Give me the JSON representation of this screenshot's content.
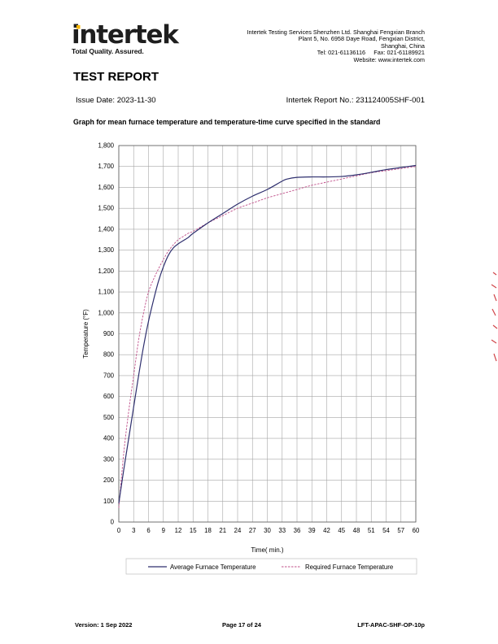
{
  "header": {
    "logo_text": "intertek",
    "tagline": "Total Quality. Assured.",
    "company": "Intertek Testing Services Shenzhen Ltd. Shanghai Fengxian Branch",
    "address_line1": "Plant 5, No. 6958 Daye Road, Fengxian District,",
    "address_line2": "Shanghai, China",
    "tel_fax": "Tel: 021-61136116     Fax: 021-61189921",
    "website": "Website: www.intertek.com",
    "brand_color": "#f7b500"
  },
  "report": {
    "title": "TEST REPORT",
    "issue_date": "Issue Date: 2023-11-30",
    "report_no": "Intertek Report No.: 231124005SHF-001",
    "graph_heading": "Graph for mean furnace temperature and temperature-time curve specified in the standard"
  },
  "chart_data": {
    "type": "line",
    "title": "",
    "xlabel": "Time( min.)",
    "ylabel": "Temperature (°F)",
    "xlim": [
      0,
      60
    ],
    "ylim": [
      0,
      1800
    ],
    "xticks": [
      0,
      3,
      6,
      9,
      12,
      15,
      18,
      21,
      24,
      27,
      30,
      33,
      36,
      39,
      42,
      45,
      48,
      51,
      54,
      57,
      60
    ],
    "yticks": [
      0,
      100,
      200,
      300,
      400,
      500,
      600,
      700,
      800,
      900,
      1000,
      1100,
      1200,
      1300,
      1400,
      1500,
      1600,
      1700,
      1800
    ],
    "ytick_labels": [
      "0",
      "100",
      "200",
      "300",
      "400",
      "500",
      "600",
      "700",
      "800",
      "900",
      "1,000",
      "1,100",
      "1,200",
      "1,300",
      "1,400",
      "1,500",
      "1,600",
      "1,700",
      "1,800"
    ],
    "grid": true,
    "legend_position": "bottom",
    "series": [
      {
        "name": "Average Furnace Temperature",
        "color": "#2e2f6e",
        "style": "solid",
        "x": [
          0,
          1,
          2,
          3,
          4,
          5,
          6,
          7,
          8,
          9,
          10,
          11,
          12,
          13,
          14,
          15,
          18,
          21,
          24,
          27,
          30,
          33,
          34,
          36,
          39,
          42,
          45,
          48,
          51,
          54,
          57,
          60
        ],
        "y": [
          90,
          250,
          400,
          550,
          700,
          840,
          960,
          1060,
          1150,
          1220,
          1275,
          1310,
          1330,
          1345,
          1360,
          1380,
          1430,
          1475,
          1520,
          1558,
          1590,
          1630,
          1640,
          1648,
          1650,
          1650,
          1652,
          1660,
          1672,
          1685,
          1695,
          1705
        ]
      },
      {
        "name": "Required Furnace Temperature",
        "color": "#c0508a",
        "style": "dashed",
        "x": [
          0,
          1,
          2,
          3,
          4,
          5,
          6,
          7,
          8,
          9,
          10,
          11,
          12,
          13,
          14,
          15,
          18,
          21,
          24,
          27,
          30,
          33,
          36,
          39,
          42,
          45,
          48,
          51,
          54,
          57,
          60
        ],
        "y": [
          68,
          330,
          530,
          700,
          870,
          1000,
          1100,
          1160,
          1210,
          1255,
          1295,
          1325,
          1350,
          1365,
          1380,
          1390,
          1430,
          1465,
          1500,
          1525,
          1550,
          1570,
          1590,
          1610,
          1625,
          1640,
          1655,
          1670,
          1680,
          1690,
          1700
        ]
      }
    ]
  },
  "footer": {
    "version": "Version: 1 Sep 2022",
    "page": "Page 17 of 24",
    "code": "LFT-APAC-SHF-OP-10p"
  }
}
